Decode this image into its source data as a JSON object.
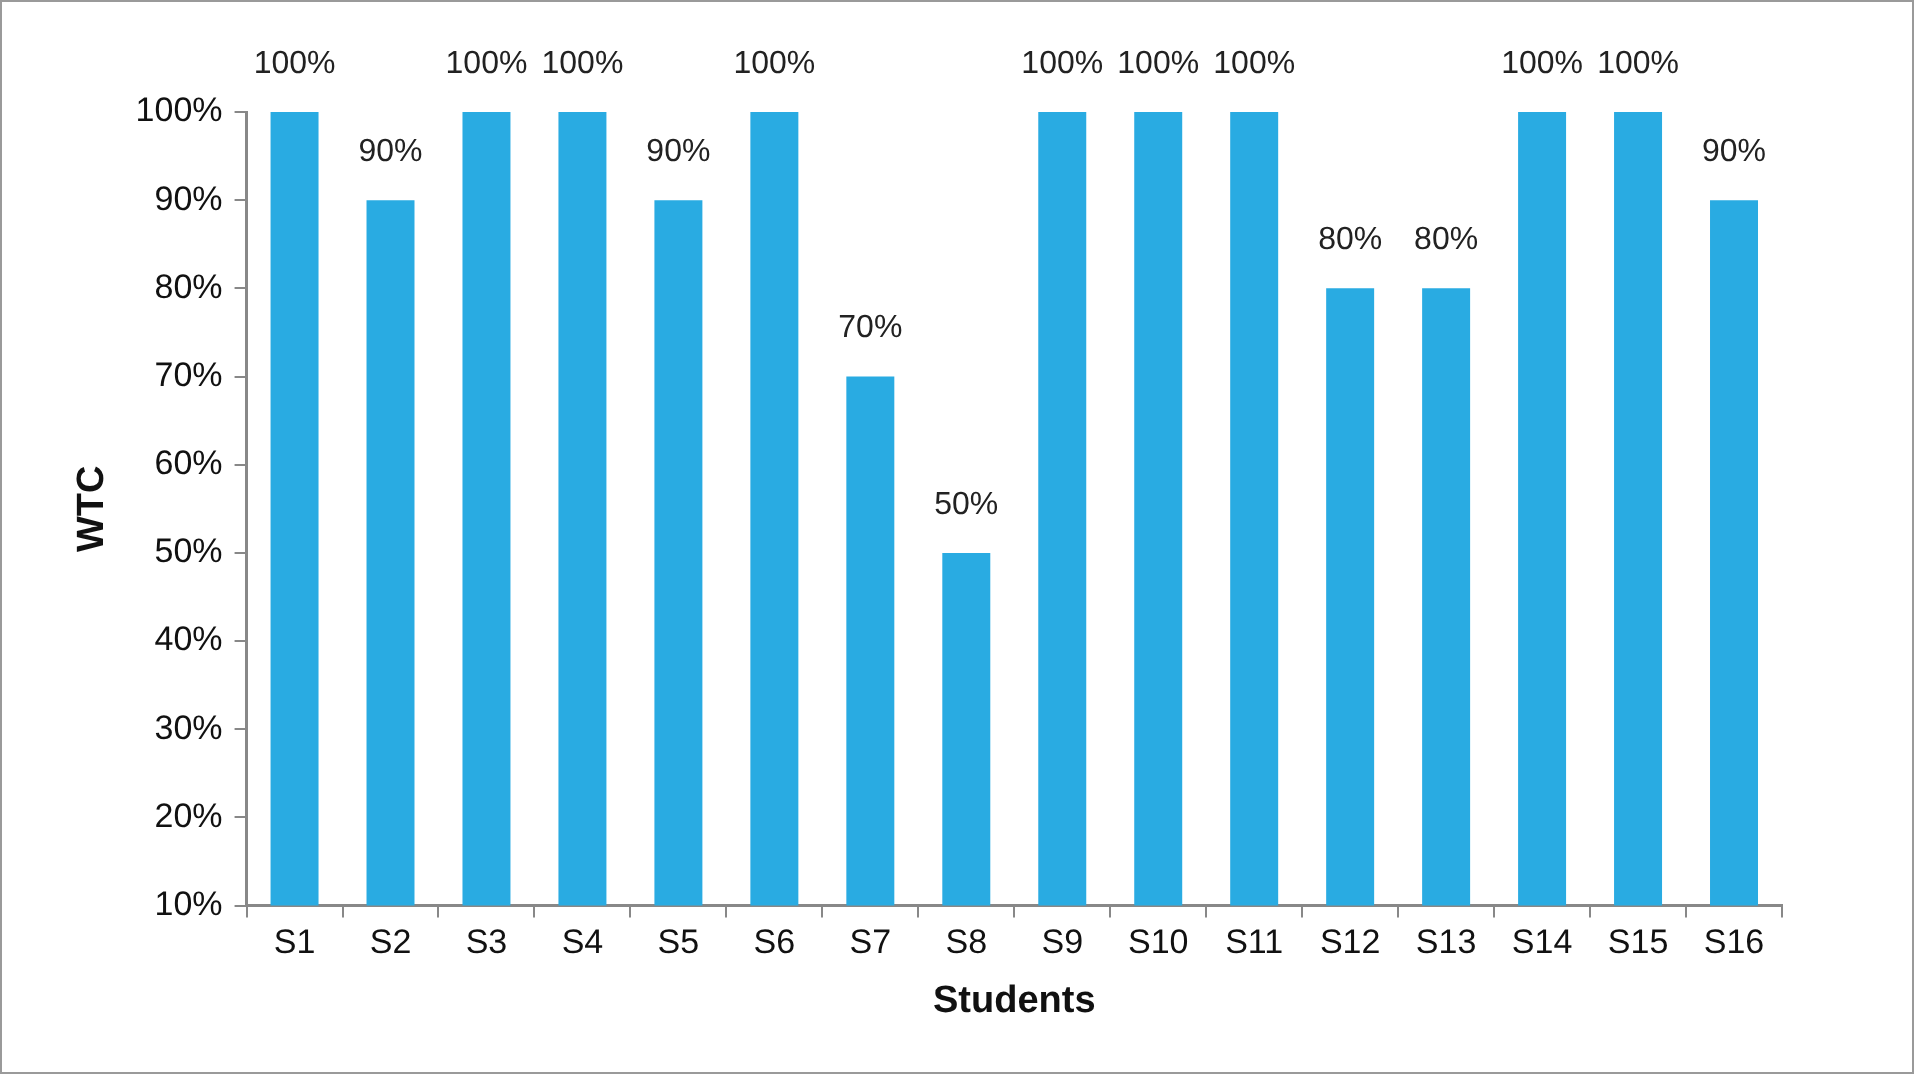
{
  "chart_data": {
    "type": "bar",
    "xlabel": "Students",
    "ylabel": "WTC",
    "categories": [
      "S1",
      "S2",
      "S3",
      "S4",
      "S5",
      "S6",
      "S7",
      "S8",
      "S9",
      "S10",
      "S11",
      "S12",
      "S13",
      "S14",
      "S15",
      "S16"
    ],
    "values": [
      100,
      90,
      100,
      100,
      90,
      100,
      70,
      50,
      100,
      100,
      100,
      80,
      80,
      100,
      100,
      90
    ],
    "value_labels": [
      "100%",
      "90%",
      "100%",
      "100%",
      "90%",
      "100%",
      "70%",
      "50%",
      "100%",
      "100%",
      "100%",
      "80%",
      "80%",
      "100%",
      "100%",
      "90%"
    ],
    "color": "#29abe2",
    "ylim": [
      10,
      100
    ],
    "yticks": [
      {
        "value": 10,
        "label": "10%"
      },
      {
        "value": 20,
        "label": "20%"
      },
      {
        "value": 30,
        "label": "30%"
      },
      {
        "value": 40,
        "label": "40%"
      },
      {
        "value": 50,
        "label": "50%"
      },
      {
        "value": 60,
        "label": "60%"
      },
      {
        "value": 70,
        "label": "70%"
      },
      {
        "value": 80,
        "label": "80%"
      },
      {
        "value": 90,
        "label": "90%"
      },
      {
        "value": 100,
        "label": "100%"
      }
    ],
    "grid": false,
    "legend": false
  }
}
